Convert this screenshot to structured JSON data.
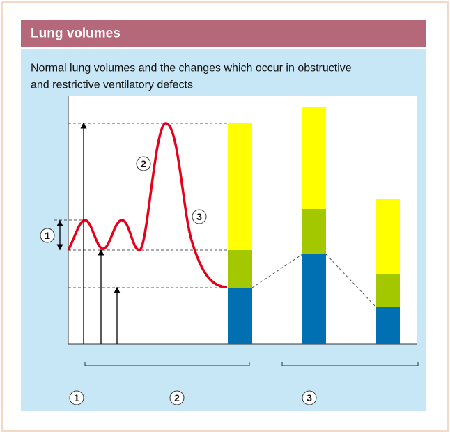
{
  "header": {
    "title": "Lung volumes"
  },
  "subtitle": [
    "Normal lung volumes and the changes which occur in obstructive",
    "and restrictive ventilatory defects"
  ],
  "markers": [
    {
      "label": "1"
    },
    {
      "label": "2"
    },
    {
      "label": "3"
    }
  ],
  "footer_markers": [
    {
      "label": "1"
    },
    {
      "label": "2"
    },
    {
      "label": "3"
    }
  ]
}
